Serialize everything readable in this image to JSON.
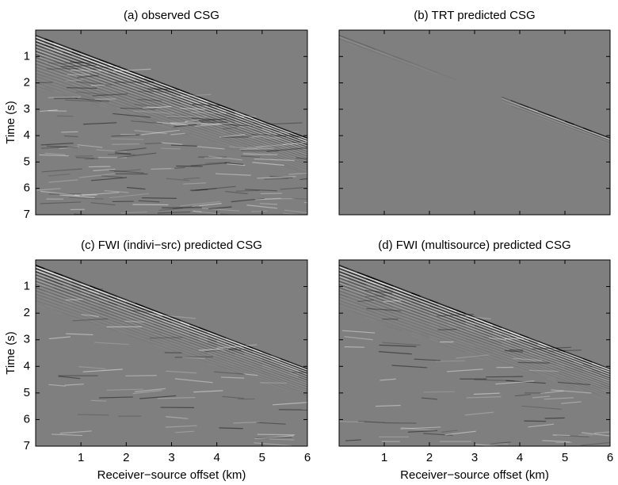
{
  "chart_data": [
    {
      "type": "seismic",
      "title": "(a) observed CSG",
      "ylabel": "Time (s)",
      "xlim": [
        0,
        6
      ],
      "xticks": [
        1,
        2,
        3,
        4,
        5,
        6
      ],
      "ylim": [
        7,
        0
      ],
      "yticks": [
        1,
        2,
        3,
        4,
        5,
        6,
        7
      ]
    },
    {
      "type": "seismic",
      "title": "(b) TRT predicted CSG",
      "xlim": [
        0,
        6
      ],
      "xticks": [
        1,
        2,
        3,
        4,
        5,
        6
      ],
      "ylim": [
        7,
        0
      ],
      "yticks": [
        1,
        2,
        3,
        4,
        5,
        6,
        7
      ]
    },
    {
      "type": "seismic",
      "title": "(c) FWI (indivi−src) predicted CSG",
      "ylabel": "Time (s)",
      "xlabel": "Receiver−source offset (km)",
      "xlim": [
        0,
        6
      ],
      "xticks": [
        1,
        2,
        3,
        4,
        5,
        6
      ],
      "ylim": [
        7,
        0
      ],
      "yticks": [
        1,
        2,
        3,
        4,
        5,
        6,
        7
      ]
    },
    {
      "type": "seismic",
      "title": "(d) FWI (multisource) predicted CSG",
      "xlabel": "Receiver−source offset (km)",
      "xlim": [
        0,
        6
      ],
      "xticks": [
        1,
        2,
        3,
        4,
        5,
        6
      ],
      "ylim": [
        7,
        0
      ],
      "yticks": [
        1,
        2,
        3,
        4,
        5,
        6,
        7
      ]
    }
  ]
}
